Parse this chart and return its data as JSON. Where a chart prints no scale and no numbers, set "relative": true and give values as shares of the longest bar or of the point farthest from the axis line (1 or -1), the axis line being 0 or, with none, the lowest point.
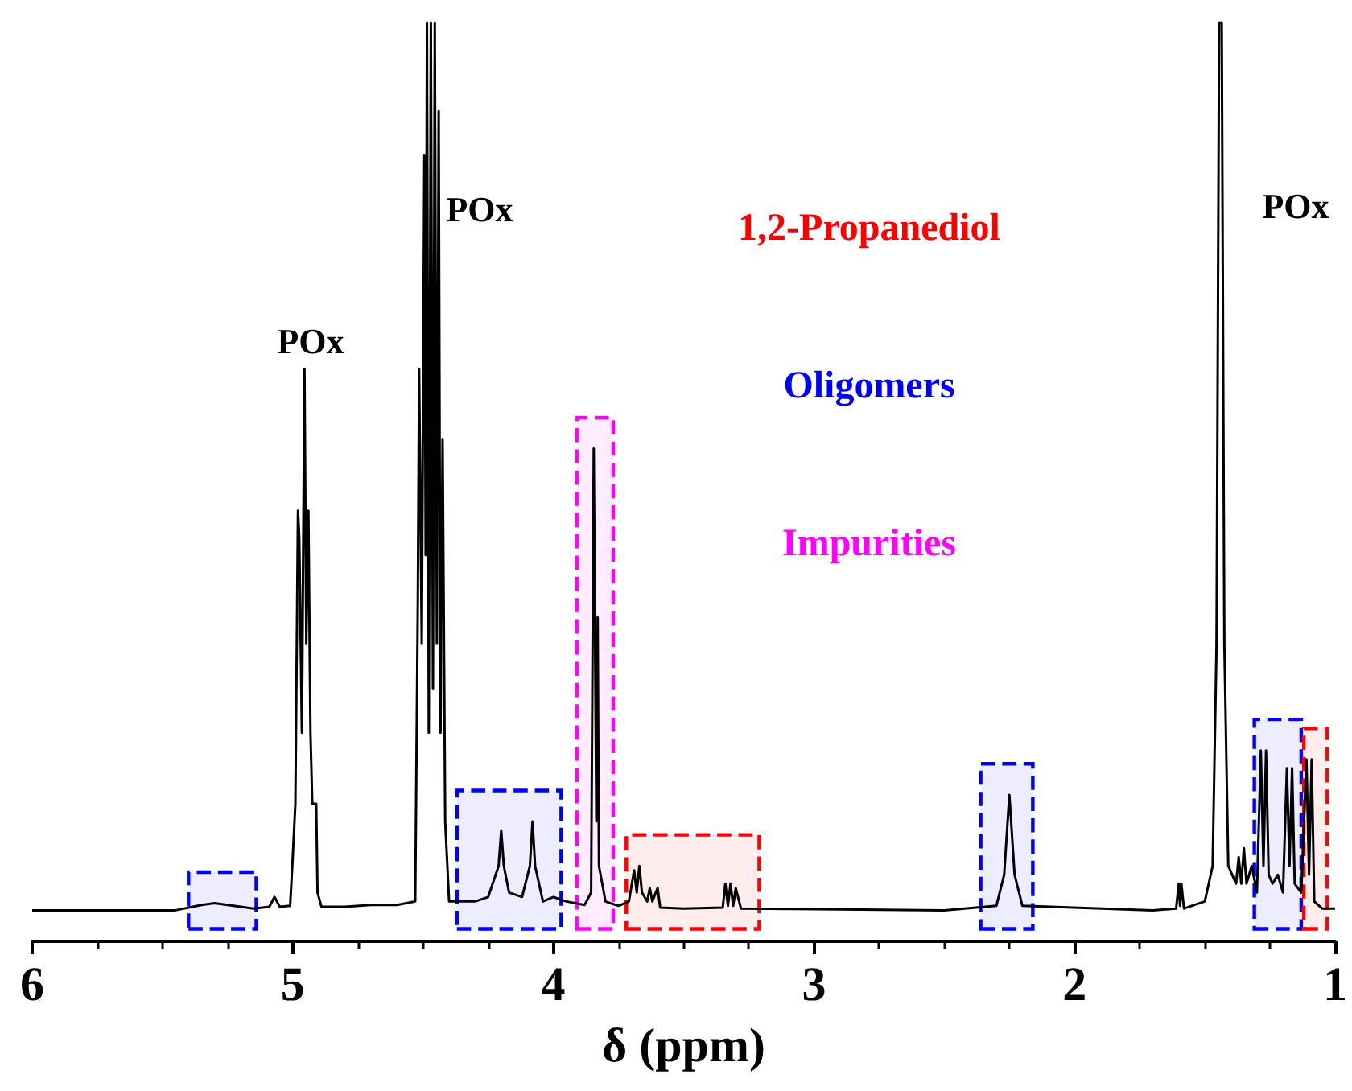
{
  "chart_data": {
    "type": "line",
    "relative": true,
    "xlabel": "δ (ppm)",
    "xlim": [
      6,
      1
    ],
    "xticks": [
      6,
      5,
      4,
      3,
      2,
      1
    ],
    "grid": false,
    "marker": "none",
    "line_style": "solid",
    "annotations": [
      "POx",
      "POx",
      "POx"
    ],
    "bands": [
      {
        "axis": "x",
        "from": 3.72,
        "to": 3.21,
        "label": "1,2-Propanediol",
        "color": "#ff0000"
      },
      {
        "axis": "x",
        "from": 4.37,
        "to": 3.97,
        "label": "Oligomers",
        "color": "#0000ff"
      },
      {
        "axis": "x",
        "from": 3.91,
        "to": 3.77,
        "label": "Impurities",
        "color": "#ff00ff"
      },
      {
        "axis": "x",
        "from": 5.4,
        "to": 5.14,
        "label": null,
        "color": "#0000ff"
      },
      {
        "axis": "x",
        "from": 2.36,
        "to": 2.16,
        "label": null,
        "color": "#0000ff"
      },
      {
        "axis": "x",
        "from": 1.31,
        "to": 1.13,
        "label": null,
        "color": "#0000ff"
      },
      {
        "axis": "x",
        "from": 1.12,
        "to": 1.03,
        "label": null,
        "color": "#ff0000"
      }
    ],
    "series": [
      {
        "color": "#000000",
        "x": [
          6.0,
          5.45,
          5.35,
          5.3,
          5.25,
          5.15,
          5.09,
          5.07,
          5.05,
          5.01,
          5.0,
          4.99,
          4.98,
          4.975,
          4.965,
          4.955,
          4.948,
          4.94,
          4.932,
          4.925,
          4.91,
          4.905,
          4.89,
          4.8,
          4.7,
          4.6,
          4.53,
          4.52,
          4.515,
          4.505,
          4.495,
          4.49,
          4.485,
          4.478,
          4.47,
          4.462,
          4.455,
          4.447,
          4.44,
          4.433,
          4.425,
          4.415,
          4.4,
          4.3,
          4.25,
          4.21,
          4.2,
          4.19,
          4.17,
          4.12,
          4.09,
          4.08,
          4.07,
          4.04,
          4.0,
          3.95,
          3.88,
          3.855,
          3.845,
          3.835,
          3.83,
          3.825,
          3.8,
          3.75,
          3.71,
          3.69,
          3.68,
          3.67,
          3.66,
          3.64,
          3.63,
          3.62,
          3.6,
          3.59,
          3.5,
          3.35,
          3.34,
          3.33,
          3.32,
          3.31,
          3.3,
          3.28,
          2.5,
          2.3,
          2.27,
          2.25,
          2.23,
          2.2,
          1.7,
          1.61,
          1.6,
          1.595,
          1.59,
          1.58,
          1.5,
          1.47,
          1.455,
          1.445,
          1.435,
          1.425,
          1.41,
          1.38,
          1.37,
          1.36,
          1.35,
          1.34,
          1.32,
          1.3,
          1.285,
          1.275,
          1.265,
          1.255,
          1.24,
          1.22,
          1.2,
          1.185,
          1.175,
          1.165,
          1.155,
          1.13,
          1.11,
          1.1,
          1.09,
          1.08,
          1.05,
          1.0
        ],
        "values": [
          0,
          0,
          0.006,
          0.008,
          0.006,
          0.002,
          0.004,
          0.015,
          0.004,
          0.005,
          0.06,
          0.12,
          0.45,
          0.42,
          0.2,
          0.61,
          0.3,
          0.45,
          0.2,
          0.12,
          0.12,
          0.02,
          0.004,
          0.004,
          0.006,
          0.006,
          0.01,
          0.35,
          0.61,
          0.3,
          0.85,
          0.4,
          1,
          0.2,
          1,
          0.25,
          1,
          0.3,
          0.9,
          0.2,
          0.53,
          0.1,
          0.01,
          0.01,
          0.015,
          0.05,
          0.09,
          0.05,
          0.02,
          0.015,
          0.05,
          0.1,
          0.05,
          0.01,
          0.015,
          0.01,
          0.006,
          0.02,
          0.52,
          0.1,
          0.33,
          0.05,
          0.01,
          0.005,
          0.01,
          0.045,
          0.02,
          0.05,
          0.02,
          0.01,
          0.025,
          0.01,
          0.025,
          0.003,
          0.002,
          0.003,
          0.03,
          0.005,
          0.03,
          0.005,
          0.025,
          0.002,
          0,
          0.005,
          0.04,
          0.13,
          0.04,
          0.005,
          0,
          0.002,
          0.03,
          0.005,
          0.03,
          0.002,
          0.01,
          0.05,
          0.3,
          1,
          1,
          0.3,
          0.05,
          0.03,
          0.06,
          0.03,
          0.07,
          0.03,
          0.05,
          0.02,
          0.18,
          0.05,
          0.18,
          0.04,
          0.03,
          0.04,
          0.02,
          0.16,
          0.05,
          0.16,
          0.03,
          0.02,
          0.17,
          0.04,
          0.17,
          0.01,
          0.002,
          0.002
        ]
      }
    ]
  }
}
